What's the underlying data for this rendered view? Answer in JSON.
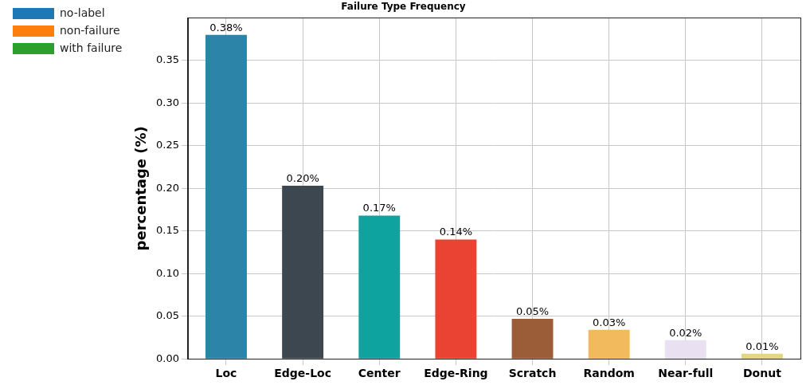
{
  "chart_data": {
    "type": "bar",
    "title": "Failure Type Frequency",
    "y_label": "percentage (%)",
    "categories": [
      "Loc",
      "Edge-Loc",
      "Center",
      "Edge-Ring",
      "Scratch",
      "Random",
      "Near-full",
      "Donut"
    ],
    "series": [
      {
        "colors": [
          "#2c84a9",
          "#3c4750",
          "#0fa3a0",
          "#ea4334",
          "#9b5c38",
          "#f3b95d",
          "#e9e1f1",
          "#e4d57f"
        ],
        "values": [
          0.38,
          0.203,
          0.168,
          0.14,
          0.047,
          0.034,
          0.022,
          0.006
        ],
        "value_labels": [
          "0.38%",
          "0.20%",
          "0.17%",
          "0.14%",
          "0.05%",
          "0.03%",
          "0.02%",
          "0.01%"
        ]
      },
      {
        "name": "no-label",
        "color": "#1f77b4",
        "values": [
          null,
          null,
          null,
          null,
          null,
          null,
          null,
          null
        ]
      },
      {
        "name": "non-failure",
        "color": "#ff7f0e",
        "values": [
          null,
          null,
          null,
          null,
          null,
          null,
          null,
          null
        ]
      },
      {
        "name": "with failure",
        "color": "#2ca02c",
        "values": [
          null,
          null,
          null,
          null,
          null,
          null,
          null,
          null
        ]
      }
    ],
    "ylim": [
      0,
      0.4
    ],
    "yticks": [
      {
        "value": 0,
        "label": "0.00"
      },
      {
        "value": 0.05,
        "label": "0.05"
      },
      {
        "value": 0.1,
        "label": "0.10"
      },
      {
        "value": 0.15,
        "label": "0.15"
      },
      {
        "value": 0.2,
        "label": "0.20"
      },
      {
        "value": 0.25,
        "label": "0.25"
      },
      {
        "value": 0.3,
        "label": "0.30"
      },
      {
        "value": 0.35,
        "label": "0.35"
      }
    ],
    "grid": true,
    "legend": "left",
    "data_labels": true
  }
}
